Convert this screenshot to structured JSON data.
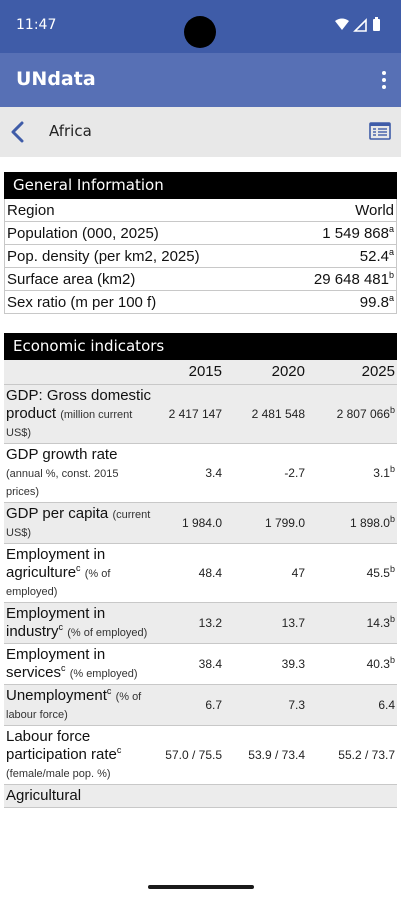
{
  "status_bar": {
    "time": "11:47",
    "icons": [
      "wifi-icon",
      "signal-icon",
      "battery-icon"
    ]
  },
  "app_bar": {
    "title": "UNdata",
    "menu_icon": "more-vert-icon"
  },
  "nav_bar": {
    "country": "Africa",
    "back_icon": "chevron-left-icon",
    "list_icon": "list-view-icon"
  },
  "general": {
    "header": "General Information",
    "rows": [
      {
        "label": "Region",
        "value": "World",
        "sup": ""
      },
      {
        "label": "Population (000, 2025)",
        "value": "1 549 868",
        "sup": "a"
      },
      {
        "label": "Pop. density (per km2, 2025)",
        "value": "52.4",
        "sup": "a"
      },
      {
        "label": "Surface area (km2)",
        "value": "29 648 481",
        "sup": "b"
      },
      {
        "label": "Sex ratio (m per 100 f)",
        "value": "99.8",
        "sup": "a"
      }
    ]
  },
  "economic": {
    "header": "Economic indicators",
    "years": [
      "2015",
      "2020",
      "2025"
    ],
    "rows": [
      {
        "label": "GDP: Gross domestic product",
        "label_sup": "",
        "unit": "(million current US$)",
        "v2015": "2 417 147",
        "v2020": "2 481 548",
        "v2025": "2 807 066",
        "sup": "b"
      },
      {
        "label": "GDP growth rate",
        "label_sup": "",
        "unit": "(annual %, const. 2015 prices)",
        "v2015": "3.4",
        "v2020": "-2.7",
        "v2025": "3.1",
        "sup": "b"
      },
      {
        "label": "GDP per capita",
        "label_sup": "",
        "unit": "(current US$)",
        "v2015": "1 984.0",
        "v2020": "1 799.0",
        "v2025": "1 898.0",
        "sup": "b"
      },
      {
        "label": "Employment in agriculture",
        "label_sup": "c",
        "unit": "(% of employed)",
        "v2015": "48.4",
        "v2020": "47",
        "v2025": "45.5",
        "sup": "b"
      },
      {
        "label": "Employment in industry",
        "label_sup": "c",
        "unit": "(% of employed)",
        "v2015": "13.2",
        "v2020": "13.7",
        "v2025": "14.3",
        "sup": "b"
      },
      {
        "label": "Employment in services",
        "label_sup": "c",
        "unit": "(% employed)",
        "v2015": "38.4",
        "v2020": "39.3",
        "v2025": "40.3",
        "sup": "b"
      },
      {
        "label": "Unemployment",
        "label_sup": "c",
        "unit": "(% of labour force)",
        "v2015": "6.7",
        "v2020": "7.3",
        "v2025": "6.4",
        "sup": ""
      },
      {
        "label": "Labour force participation rate",
        "label_sup": "c",
        "unit": "(female/male pop. %)",
        "v2015": "57.0 / 75.5",
        "v2020": "53.9 / 73.4",
        "v2025": "55.2 / 73.7",
        "sup": ""
      },
      {
        "label": "Agricultural",
        "label_sup": "",
        "unit": "",
        "v2015": "",
        "v2020": "",
        "v2025": "",
        "sup": ""
      }
    ]
  },
  "colors": {
    "status_bar": "#3f5ca8",
    "app_bar": "#5770b5",
    "nav_bar": "#e8e8e8",
    "accent": "#3f5ca8",
    "header_bg": "#000000",
    "shade": "#ececec"
  }
}
